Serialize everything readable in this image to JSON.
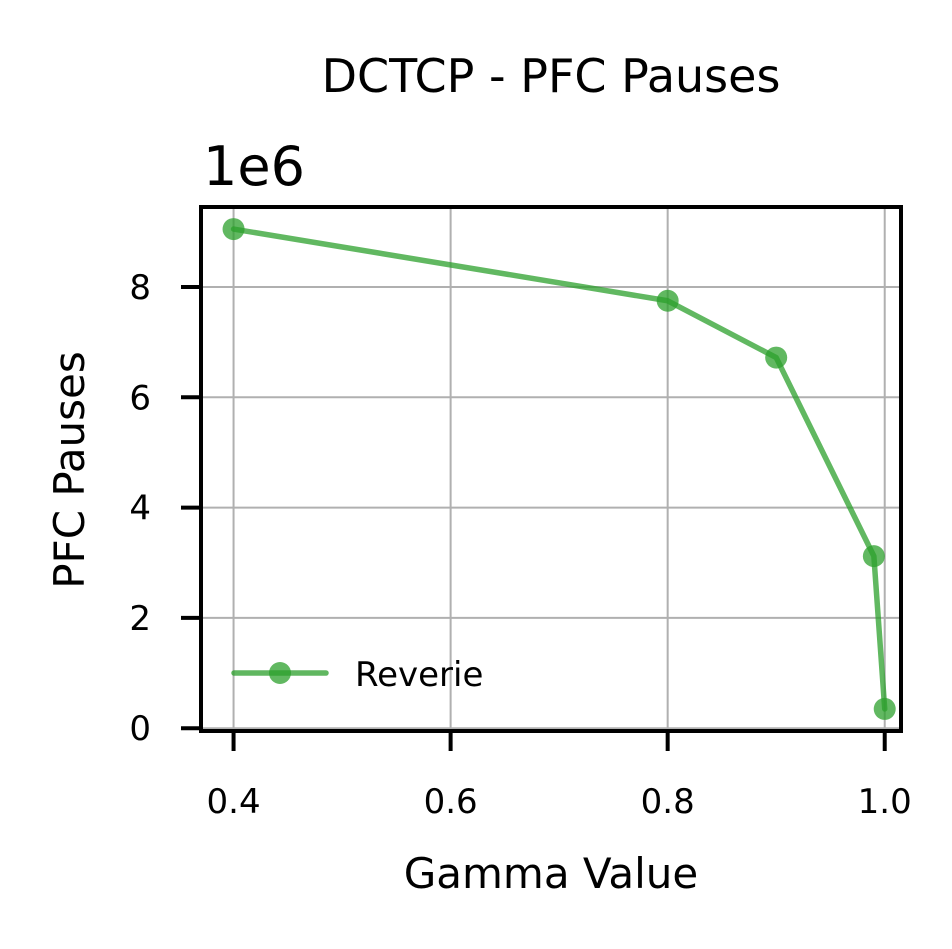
{
  "chart_data": {
    "type": "line",
    "title": "DCTCP - PFC Pauses",
    "xlabel": "Gamma Value",
    "ylabel": "PFC Pauses",
    "y_offset_label": "1e6",
    "xlim": [
      0.37,
      1.015
    ],
    "ylim": [
      -0.05,
      9.45
    ],
    "x_ticks": [
      0.4,
      0.6,
      0.8,
      1.0
    ],
    "x_tick_labels": [
      "0.4",
      "0.6",
      "0.8",
      "1.0"
    ],
    "y_ticks": [
      0,
      2,
      4,
      6,
      8
    ],
    "y_tick_labels": [
      "0",
      "2",
      "4",
      "6",
      "8"
    ],
    "grid": true,
    "legend_position": "lower-left",
    "series": [
      {
        "name": "Reverie",
        "color": "#2ca02c",
        "marker": "circle",
        "x": [
          0.4,
          0.8,
          0.9,
          0.99,
          1.0
        ],
        "y": [
          9.05,
          7.75,
          6.72,
          3.12,
          0.35
        ]
      }
    ]
  }
}
